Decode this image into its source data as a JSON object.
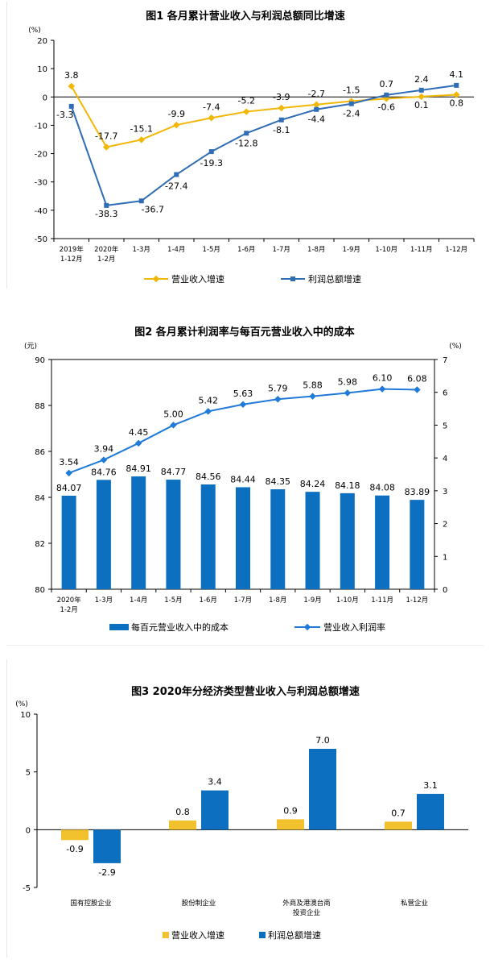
{
  "colors": {
    "orange": "#f2b705",
    "blue": "#2f6db5",
    "blue_bar": "#0c6fc0",
    "blue_line": "#1f7ad8",
    "yellow": "#f2c12e"
  },
  "fig1": {
    "title": "图1  各月累计营业收入与利润总额同比增速",
    "unit": "(%)",
    "y_ticks": [
      "20",
      "10",
      "0",
      "-10",
      "-20",
      "-30",
      "-40",
      "-50"
    ],
    "x_labels": [
      [
        "2019年",
        "1-12月"
      ],
      [
        "2020年",
        "1-2月"
      ],
      [
        "1-3月"
      ],
      [
        "1-4月"
      ],
      [
        "1-5月"
      ],
      [
        "1-6月"
      ],
      [
        "1-7月"
      ],
      [
        "1-8月"
      ],
      [
        "1-9月"
      ],
      [
        "1-10月"
      ],
      [
        "1-11月"
      ],
      [
        "1-12月"
      ]
    ],
    "legend": {
      "revenue": "营业收入增速",
      "profit": "利润总额增速"
    }
  },
  "fig2": {
    "title": "图2  各月累计利润率与每百元营业收入中的成本",
    "unit_left": "(元)",
    "unit_right": "(%)",
    "left_ticks": [
      "90",
      "88",
      "86",
      "84",
      "82",
      "80"
    ],
    "right_ticks": [
      "7",
      "6",
      "5",
      "4",
      "3",
      "2",
      "1",
      "0"
    ],
    "x_labels": [
      [
        "2020年",
        "1-2月"
      ],
      [
        "1-3月"
      ],
      [
        "1-4月"
      ],
      [
        "1-5月"
      ],
      [
        "1-6月"
      ],
      [
        "1-7月"
      ],
      [
        "1-8月"
      ],
      [
        "1-9月"
      ],
      [
        "1-10月"
      ],
      [
        "1-11月"
      ],
      [
        "1-12月"
      ]
    ],
    "legend": {
      "cost": "每百元营业收入中的成本",
      "margin": "营业收入利润率"
    }
  },
  "fig3": {
    "title": "图3  2020年分经济类型营业收入与利润总额增速",
    "unit": "(%)",
    "y_ticks": [
      "10",
      "5",
      "0",
      "-5"
    ],
    "x_labels": [
      [
        "国有控股企业"
      ],
      [
        "股份制企业"
      ],
      [
        "外商及港澳台商",
        "投资企业"
      ],
      [
        "私营企业"
      ]
    ],
    "legend": {
      "revenue": "营业收入增速",
      "profit": "利润总额增速"
    }
  },
  "chart_data": [
    {
      "type": "line",
      "title": "图1  各月累计营业收入与利润总额同比增速",
      "ylabel": "(%)",
      "ylim": [
        -50,
        20
      ],
      "categories": [
        "2019年1-12月",
        "2020年1-2月",
        "1-3月",
        "1-4月",
        "1-5月",
        "1-6月",
        "1-7月",
        "1-8月",
        "1-9月",
        "1-10月",
        "1-11月",
        "1-12月"
      ],
      "series": [
        {
          "name": "营业收入增速",
          "values": [
            3.8,
            -17.7,
            -15.1,
            -9.9,
            -7.4,
            -5.2,
            -3.9,
            -2.7,
            -1.5,
            -0.6,
            0.1,
            0.8
          ],
          "labels": [
            "3.8",
            "-17.7",
            "-15.1",
            "-9.9",
            "-7.4",
            "-5.2",
            "-3.9",
            "-2.7",
            "-1.5",
            "-0.6",
            "0.1",
            "0.8"
          ]
        },
        {
          "name": "利润总额增速",
          "values": [
            -3.3,
            -38.3,
            -36.7,
            -27.4,
            -19.3,
            -12.8,
            -8.1,
            -4.4,
            -2.4,
            0.7,
            2.4,
            4.1
          ],
          "labels": [
            "-3.3",
            "-38.3",
            "-36.7",
            "-27.4",
            "-19.3",
            "-12.8",
            "-8.1",
            "-4.4",
            "-2.4",
            "0.7",
            "2.4",
            "4.1"
          ]
        }
      ],
      "legend": "bottom"
    },
    {
      "type": "bar",
      "title": "图2  各月累计利润率与每百元营业收入中的成本",
      "ylabel": "(元)",
      "y2label": "(%)",
      "ylim": [
        80,
        90
      ],
      "y2lim": [
        0,
        7
      ],
      "categories": [
        "2020年1-2月",
        "1-3月",
        "1-4月",
        "1-5月",
        "1-6月",
        "1-7月",
        "1-8月",
        "1-9月",
        "1-10月",
        "1-11月",
        "1-12月"
      ],
      "series": [
        {
          "name": "每百元营业收入中的成本",
          "kind": "bar",
          "axis": "left",
          "values": [
            84.07,
            84.76,
            84.91,
            84.77,
            84.56,
            84.44,
            84.35,
            84.24,
            84.18,
            84.08,
            83.89
          ],
          "labels": [
            "84.07",
            "84.76",
            "84.91",
            "84.77",
            "84.56",
            "84.44",
            "84.35",
            "84.24",
            "84.18",
            "84.08",
            "83.89"
          ]
        },
        {
          "name": "营业收入利润率",
          "kind": "line",
          "axis": "right",
          "values": [
            3.54,
            3.94,
            4.45,
            5.0,
            5.42,
            5.63,
            5.79,
            5.88,
            5.98,
            6.1,
            6.08
          ],
          "labels": [
            "3.54",
            "3.94",
            "4.45",
            "5.00",
            "5.42",
            "5.63",
            "5.79",
            "5.88",
            "5.98",
            "6.10",
            "6.08"
          ]
        }
      ],
      "legend": "bottom"
    },
    {
      "type": "bar",
      "title": "图3  2020年分经济类型营业收入与利润总额增速",
      "ylabel": "(%)",
      "ylim": [
        -5,
        10
      ],
      "categories": [
        "国有控股企业",
        "股份制企业",
        "外商及港澳台商投资企业",
        "私营企业"
      ],
      "series": [
        {
          "name": "营业收入增速",
          "values": [
            -0.9,
            0.8,
            0.9,
            0.7
          ],
          "labels": [
            "-0.9",
            "0.8",
            "0.9",
            "0.7"
          ]
        },
        {
          "name": "利润总额增速",
          "values": [
            -2.9,
            3.4,
            7.0,
            3.1
          ],
          "labels": [
            "-2.9",
            "3.4",
            "7.0",
            "3.1"
          ]
        }
      ],
      "legend": "bottom"
    }
  ]
}
